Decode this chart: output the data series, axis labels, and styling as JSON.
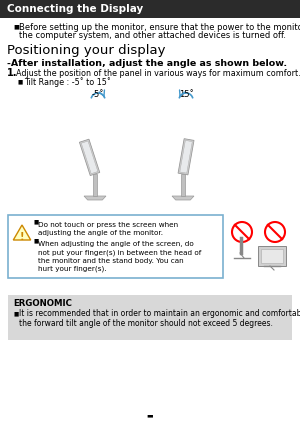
{
  "title_bar_text": "Connecting the Display",
  "title_bar_bg": "#2b2b2b",
  "title_bar_color": "#ffffff",
  "page_bg": "#ffffff",
  "bullet1_line1": "Before setting up the monitor, ensure that the power to the monitor,",
  "bullet1_line2": "the computer system, and other attached devices is turned off.",
  "section_title": "Positioning your display",
  "subtitle": "-After installation, adjust the angle as shown below.",
  "step1_text": "Adjust the position of the panel in various ways for maximum comfort.",
  "bullet_tilt": "Tilt Range : -5˚ to 15˚",
  "angle_label_left": "-5˚",
  "angle_label_right": "15˚",
  "caution_bullet1": "Do not touch or press the screen when\nadjusting the angle of the monitor.",
  "caution_bullet2": "When adjusting the angle of the screen, do\nnot put your finger(s) in between the head of\nthe monitor and the stand body. You can\nhurt your finger(s).",
  "caution_box_border": "#7ab0d0",
  "ergonomic_bg": "#d8d8d8",
  "ergonomic_title": "ERGONOMIC",
  "ergonomic_text1": "It is recommended that in order to maintain an ergonomic and comfortable viewing position,",
  "ergonomic_text2": "the forward tilt angle of the monitor should not exceed 5 degrees.",
  "footer_char": "▬"
}
